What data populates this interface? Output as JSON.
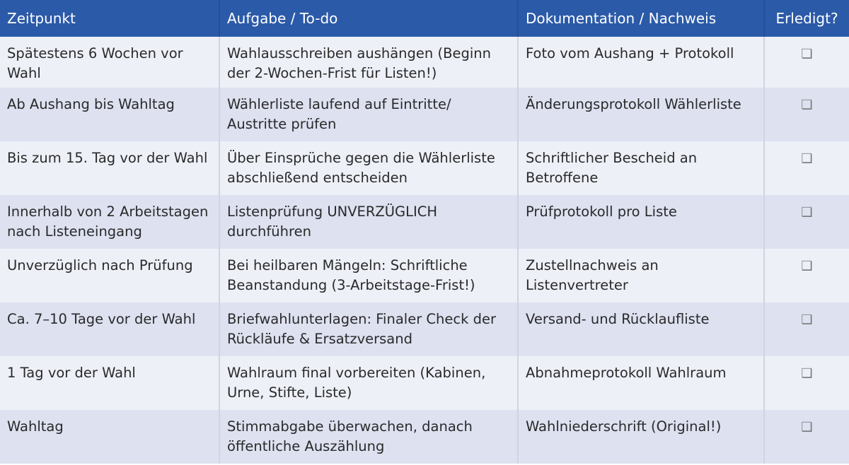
{
  "headers": [
    "Zeitpunkt",
    "Aufgabe / To-do",
    "Dokumentation / Nachweis",
    "Erledigt?"
  ],
  "checkbox_icon": "❑",
  "colors": {
    "header": "#2b5aa8",
    "row_light": "#eef0f8",
    "row_dark": "#dde1f0"
  },
  "rows": [
    {
      "zeitpunkt": "Spätestens 6 Wochen vor Wahl",
      "aufgabe": "Wahlausschreiben aushängen (Beginn der 2-Wochen-Frist für Listen!)",
      "nachweis": "Foto vom Aushang + Protokoll",
      "erledigt": false
    },
    {
      "zeitpunkt": "Ab Aushang bis Wahltag",
      "aufgabe": "Wählerliste laufend auf Eintritte/ Austritte prüfen",
      "nachweis": "Änderungsprotokoll Wählerliste",
      "erledigt": false
    },
    {
      "zeitpunkt": "Bis zum 15. Tag vor der Wahl",
      "aufgabe": "Über Einsprüche gegen die Wählerliste abschließend entscheiden",
      "nachweis": "Schriftlicher Bescheid an Betroffene",
      "erledigt": false
    },
    {
      "zeitpunkt": "Innerhalb von 2 Arbeitstagen nach Listeneingang",
      "aufgabe": "Listenprüfung UNVERZÜGLICH durchführen",
      "nachweis": "Prüfprotokoll pro Liste",
      "erledigt": false
    },
    {
      "zeitpunkt": "Unverzüglich nach Prüfung",
      "aufgabe": "Bei heilbaren Mängeln: Schriftliche Beanstandung (3-Arbeitstage-Frist!)",
      "nachweis": "Zustellnachweis an Listenvertreter",
      "erledigt": false
    },
    {
      "zeitpunkt": "Ca. 7–10 Tage vor der Wahl",
      "aufgabe": "Briefwahlunterlagen: Finaler Check der Rückläufe & Ersatzversand",
      "nachweis": "Versand- und Rücklaufliste",
      "erledigt": false
    },
    {
      "zeitpunkt": "1 Tag vor der Wahl",
      "aufgabe": "Wahlraum final vorbereiten (Kabinen, Urne, Stifte, Liste)",
      "nachweis": "Abnahmeprotokoll Wahlraum",
      "erledigt": false
    },
    {
      "zeitpunkt": "Wahltag",
      "aufgabe": "Stimmabgabe überwachen, danach öffentliche Auszählung",
      "nachweis": "Wahlniederschrift (Original!)",
      "erledigt": false
    }
  ]
}
